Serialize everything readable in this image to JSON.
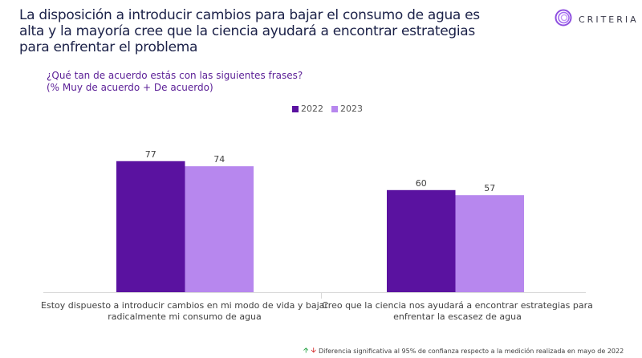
{
  "header": {
    "title": "La disposición a introducir cambios para bajar el consumo de agua es alta y la mayoría cree que la ciencia ayudará a encontrar estrategias para enfrentar el problema",
    "logo_text": "CRITERIA",
    "logo_icon": "spiral-logo-icon"
  },
  "question": {
    "line1": "¿Qué tan de acuerdo estás con las siguientes frases?",
    "line2": "(% Muy de acuerdo + De acuerdo)"
  },
  "footnote": {
    "up_icon": "arrow-up-icon",
    "down_icon": "arrow-down-icon",
    "text": "Diferencia significativa al 95% de confianza respecto a la medición realizada en mayo de 2022"
  },
  "colors": {
    "series_2022": "#5a12a0",
    "series_2023": "#b787ee",
    "title": "#1b2148",
    "question": "#5a1e96"
  },
  "chart_data": {
    "type": "bar",
    "title": "¿Qué tan de acuerdo estás con las siguientes frases? (% Muy de acuerdo + De acuerdo)",
    "xlabel": "",
    "ylabel": "",
    "ylim": [
      0,
      100
    ],
    "grid": false,
    "legend_position": "top-center",
    "categories": [
      "Estoy dispuesto a introducir cambios en mi modo de vida y bajar radicalmente mi consumo de agua",
      "Creo que la ciencia nos ayudará a encontrar estrategias para enfrentar la escasez de agua"
    ],
    "series": [
      {
        "name": "2022",
        "values": [
          77,
          60
        ]
      },
      {
        "name": "2023",
        "values": [
          74,
          57
        ]
      }
    ]
  }
}
